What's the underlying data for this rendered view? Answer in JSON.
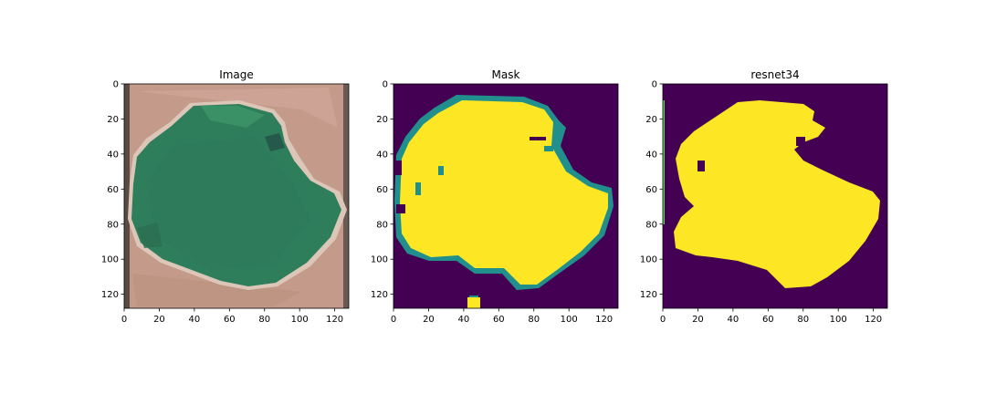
{
  "figure": {
    "background": "#ffffff",
    "panels": [
      {
        "id": "image",
        "title": "Image",
        "kind": "satellite-photo",
        "description_colors": {
          "water": "#2e7d5b",
          "land": "#c49a8a"
        },
        "xticks": [
          "0",
          "20",
          "40",
          "60",
          "80",
          "100",
          "120"
        ],
        "yticks": [
          "0",
          "20",
          "40",
          "60",
          "80",
          "100",
          "120"
        ]
      },
      {
        "id": "mask",
        "title": "Mask",
        "kind": "binary-mask",
        "description_colors": {
          "background": "#440154",
          "foreground": "#fde725",
          "edge": "#21908d"
        },
        "xticks": [
          "0",
          "20",
          "40",
          "60",
          "80",
          "100",
          "120"
        ],
        "yticks": [
          "0",
          "20",
          "40",
          "60",
          "80",
          "100",
          "120"
        ]
      },
      {
        "id": "prediction",
        "title": "resnet34",
        "kind": "binary-mask",
        "description_colors": {
          "background": "#440154",
          "foreground": "#fde725",
          "edge": "#21908d"
        },
        "xticks": [
          "0",
          "20",
          "40",
          "60",
          "80",
          "100",
          "120"
        ],
        "yticks": [
          "0",
          "20",
          "40",
          "60",
          "80",
          "100",
          "120"
        ]
      }
    ]
  }
}
